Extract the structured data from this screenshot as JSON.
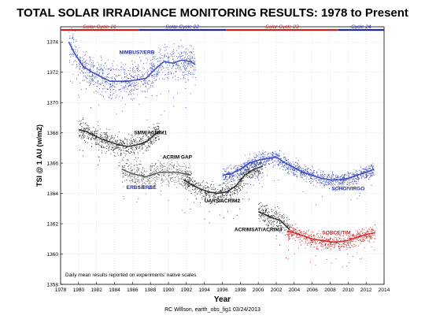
{
  "chart_data": {
    "type": "scatter",
    "title": "TOTAL SOLAR IRRADIANCE MONITORING RESULTS: 1978 to Present",
    "xlabel": "Year",
    "ylabel": "TSI @ 1 AU (w/m2)",
    "xlim": [
      1978,
      2014
    ],
    "ylim": [
      1358,
      1375
    ],
    "xticks": [
      1978,
      1980,
      1982,
      1984,
      1986,
      1988,
      1990,
      1992,
      1994,
      1996,
      1998,
      2000,
      2002,
      2004,
      2006,
      2008,
      2010,
      2012,
      2014
    ],
    "yticks": [
      1358,
      1360,
      1362,
      1364,
      1366,
      1368,
      1370,
      1372,
      1374
    ],
    "grid": true,
    "cycle_bar": [
      {
        "label": "Solar Cycle 21",
        "start": 1978,
        "end": 1986.7,
        "color": "#c81e1e"
      },
      {
        "label": "Solar Cycle 22",
        "start": 1986.7,
        "end": 1996.4,
        "color": "#1e2aa8"
      },
      {
        "label": "Solar Cycle 23",
        "start": 1996.4,
        "end": 2008.9,
        "color": "#c81e1e"
      },
      {
        "label": "Cycle 24",
        "start": 2008.9,
        "end": 2014,
        "color": "#1e2aa8"
      }
    ],
    "series": [
      {
        "name": "NIMBUS7/ERB",
        "color": "#2f3fc0",
        "points": [
          [
            1978.9,
            1374.0
          ],
          [
            1979.5,
            1373.3
          ],
          [
            1980.5,
            1372.4
          ],
          [
            1981.5,
            1372.0
          ],
          [
            1982.5,
            1371.7
          ],
          [
            1983.5,
            1371.4
          ],
          [
            1984.5,
            1371.4
          ],
          [
            1985.5,
            1371.4
          ],
          [
            1986.5,
            1371.5
          ],
          [
            1987.5,
            1371.6
          ],
          [
            1988.5,
            1372.2
          ],
          [
            1989.5,
            1372.7
          ],
          [
            1990.5,
            1372.6
          ],
          [
            1991.5,
            1372.8
          ],
          [
            1992.5,
            1372.7
          ],
          [
            1993.0,
            1372.5
          ]
        ],
        "noise": 1.1
      },
      {
        "name": "SMM/ACRIM1",
        "color": "#222222",
        "points": [
          [
            1980.0,
            1368.2
          ],
          [
            1980.8,
            1368.1
          ],
          [
            1981.5,
            1367.9
          ],
          [
            1982.5,
            1367.6
          ],
          [
            1983.5,
            1367.4
          ],
          [
            1984.5,
            1367.2
          ],
          [
            1985.5,
            1367.1
          ],
          [
            1986.5,
            1367.2
          ],
          [
            1987.5,
            1367.4
          ],
          [
            1988.5,
            1367.9
          ],
          [
            1989.0,
            1368.1
          ]
        ],
        "noise": 0.7
      },
      {
        "name": "ERBS/ERBE",
        "color": "#555555",
        "points": [
          [
            1984.8,
            1365.6
          ],
          [
            1986.0,
            1365.3
          ],
          [
            1987.5,
            1365.1
          ],
          [
            1989.0,
            1365.4
          ],
          [
            1991.0,
            1365.4
          ],
          [
            1992.5,
            1365.2
          ]
        ],
        "noise": 0.8
      },
      {
        "name": "UARS/ACRIM2",
        "color": "#222222",
        "points": [
          [
            1991.7,
            1364.9
          ],
          [
            1992.5,
            1364.6
          ],
          [
            1993.5,
            1364.3
          ],
          [
            1994.5,
            1364.1
          ],
          [
            1995.5,
            1364.0
          ],
          [
            1996.5,
            1364.1
          ],
          [
            1997.5,
            1364.5
          ],
          [
            1998.5,
            1365.2
          ],
          [
            1999.5,
            1365.6
          ],
          [
            2000.5,
            1365.8
          ]
        ],
        "noise": 0.6
      },
      {
        "name": "SOHO/VIRGO",
        "color": "#2f3fc0",
        "points": [
          [
            1996.0,
            1365.2
          ],
          [
            1997.0,
            1365.3
          ],
          [
            1998.0,
            1365.6
          ],
          [
            1999.0,
            1366.0
          ],
          [
            2000.0,
            1366.2
          ],
          [
            2001.0,
            1366.3
          ],
          [
            2002.0,
            1366.4
          ],
          [
            2003.0,
            1366.0
          ],
          [
            2004.0,
            1365.7
          ],
          [
            2005.0,
            1365.4
          ],
          [
            2006.0,
            1365.2
          ],
          [
            2007.0,
            1365.0
          ],
          [
            2008.0,
            1364.9
          ],
          [
            2009.0,
            1364.9
          ],
          [
            2010.0,
            1365.0
          ],
          [
            2011.0,
            1365.2
          ],
          [
            2012.0,
            1365.4
          ],
          [
            2012.9,
            1365.6
          ]
        ],
        "noise": 0.5
      },
      {
        "name": "ACRIMSAT/ACRIM3",
        "color": "#222222",
        "points": [
          [
            2000.0,
            1362.8
          ],
          [
            2000.8,
            1362.6
          ],
          [
            2001.5,
            1362.4
          ],
          [
            2002.5,
            1362.2
          ],
          [
            2003.5,
            1361.6
          ]
        ],
        "noise": 0.7
      },
      {
        "name": "SORCE/TIM",
        "color": "#cc2222",
        "points": [
          [
            2003.2,
            1361.5
          ],
          [
            2004.0,
            1361.4
          ],
          [
            2005.0,
            1361.2
          ],
          [
            2006.0,
            1361.0
          ],
          [
            2007.0,
            1360.9
          ],
          [
            2008.0,
            1360.8
          ],
          [
            2009.0,
            1360.8
          ],
          [
            2010.0,
            1360.9
          ],
          [
            2011.0,
            1361.1
          ],
          [
            2012.0,
            1361.3
          ],
          [
            2013.0,
            1361.4
          ]
        ],
        "noise": 0.5
      }
    ],
    "labels": [
      {
        "text": "NIMBUS7/ERB",
        "x": 1986.5,
        "y": 1373.2,
        "color": "#1e2aa8"
      },
      {
        "text": "SMM/ACRIM1",
        "x": 1988.0,
        "y": 1367.9,
        "color": "#000000"
      },
      {
        "text": "ACRIM GAP",
        "x": 1991.0,
        "y": 1366.3,
        "color": "#000000"
      },
      {
        "text": "ERBS/ERBE",
        "x": 1987.0,
        "y": 1364.3,
        "color": "#1e2aa8"
      },
      {
        "text": "UARS/ACRIM2",
        "x": 1996.0,
        "y": 1363.4,
        "color": "#000000"
      },
      {
        "text": "SOHO/VIRGO",
        "x": 2010.0,
        "y": 1364.2,
        "color": "#1e2aa8"
      },
      {
        "text": "ACRIMSAT/ACRIM3",
        "x": 2000.0,
        "y": 1361.5,
        "color": "#000000"
      },
      {
        "text": "SORCE/TIM",
        "x": 2008.7,
        "y": 1361.3,
        "color": "#cc2222"
      }
    ],
    "annotation": "Daily mean results reported on experiments' native scales"
  },
  "footer": {
    "credit": "RC Willson, earth_obs_fig1 03/24/2013"
  }
}
